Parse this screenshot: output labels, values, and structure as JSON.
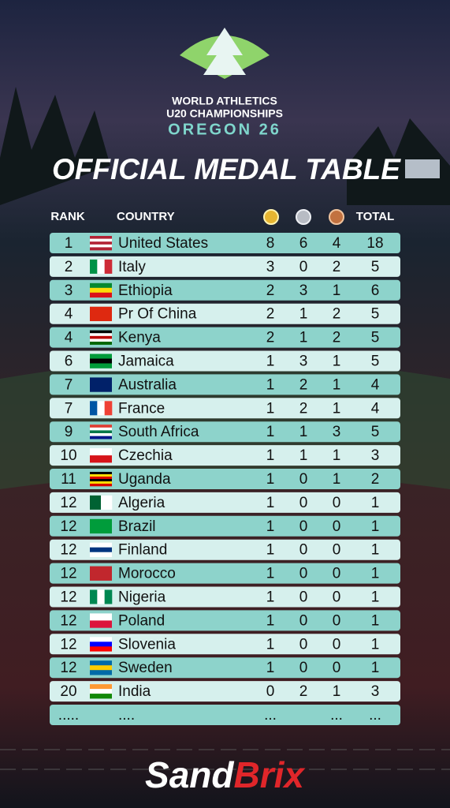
{
  "header": {
    "line1": "WORLD ATHLETICS",
    "line2": "U20 CHAMPIONSHIPS",
    "line3": "OREGON 26",
    "title": "OFFICIAL MEDAL TABLE"
  },
  "table": {
    "columns": {
      "rank": "RANK",
      "country": "COUNTRY",
      "total": "TOTAL"
    },
    "rows": [
      {
        "rank": 1,
        "country": "United States",
        "gold": 8,
        "silver": 6,
        "bronze": 4,
        "total": 18
      },
      {
        "rank": 2,
        "country": "Italy",
        "gold": 3,
        "silver": 0,
        "bronze": 2,
        "total": 5
      },
      {
        "rank": 3,
        "country": "Ethiopia",
        "gold": 2,
        "silver": 3,
        "bronze": 1,
        "total": 6
      },
      {
        "rank": 4,
        "country": "Pr Of China",
        "gold": 2,
        "silver": 1,
        "bronze": 2,
        "total": 5
      },
      {
        "rank": 4,
        "country": "Kenya",
        "gold": 2,
        "silver": 1,
        "bronze": 2,
        "total": 5
      },
      {
        "rank": 6,
        "country": "Jamaica",
        "gold": 1,
        "silver": 3,
        "bronze": 1,
        "total": 5
      },
      {
        "rank": 7,
        "country": "Australia",
        "gold": 1,
        "silver": 2,
        "bronze": 1,
        "total": 4
      },
      {
        "rank": 7,
        "country": "France",
        "gold": 1,
        "silver": 2,
        "bronze": 1,
        "total": 4
      },
      {
        "rank": 9,
        "country": "South Africa",
        "gold": 1,
        "silver": 1,
        "bronze": 3,
        "total": 5
      },
      {
        "rank": 10,
        "country": "Czechia",
        "gold": 1,
        "silver": 1,
        "bronze": 1,
        "total": 3
      },
      {
        "rank": 11,
        "country": "Uganda",
        "gold": 1,
        "silver": 0,
        "bronze": 1,
        "total": 2
      },
      {
        "rank": 12,
        "country": "Algeria",
        "gold": 1,
        "silver": 0,
        "bronze": 0,
        "total": 1
      },
      {
        "rank": 12,
        "country": "Brazil",
        "gold": 1,
        "silver": 0,
        "bronze": 0,
        "total": 1
      },
      {
        "rank": 12,
        "country": "Finland",
        "gold": 1,
        "silver": 0,
        "bronze": 0,
        "total": 1
      },
      {
        "rank": 12,
        "country": "Morocco",
        "gold": 1,
        "silver": 0,
        "bronze": 0,
        "total": 1
      },
      {
        "rank": 12,
        "country": "Nigeria",
        "gold": 1,
        "silver": 0,
        "bronze": 0,
        "total": 1
      },
      {
        "rank": 12,
        "country": "Poland",
        "gold": 1,
        "silver": 0,
        "bronze": 0,
        "total": 1
      },
      {
        "rank": 12,
        "country": "Slovenia",
        "gold": 1,
        "silver": 0,
        "bronze": 0,
        "total": 1
      },
      {
        "rank": 12,
        "country": "Sweden",
        "gold": 1,
        "silver": 0,
        "bronze": 0,
        "total": 1
      },
      {
        "rank": 20,
        "country": "India",
        "gold": 0,
        "silver": 2,
        "bronze": 1,
        "total": 3
      },
      {
        "rank": ".....",
        "country": "....",
        "gold": "...",
        "bronze": "...",
        "total": "..."
      }
    ]
  },
  "brand": {
    "part1": "Sand",
    "part2": "Brix"
  }
}
